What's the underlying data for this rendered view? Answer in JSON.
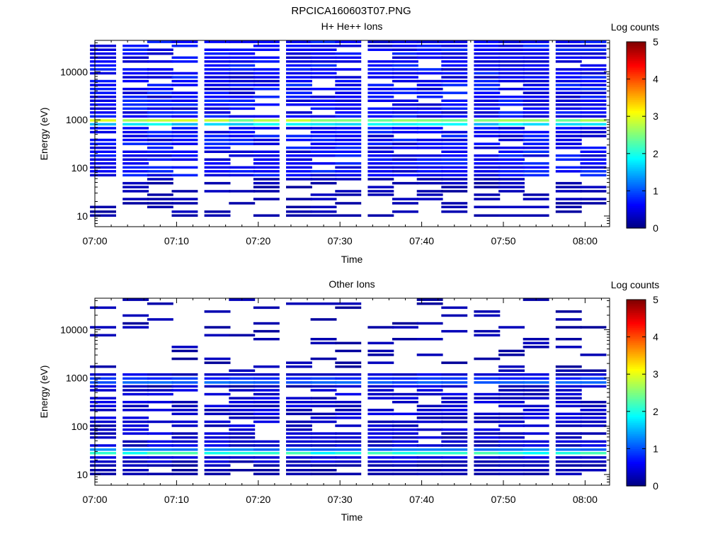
{
  "figure_title": "RPCICA160603T07.PNG",
  "colors": {
    "cmap": [
      "#00007f",
      "#0000ff",
      "#007fff",
      "#00ffff",
      "#7fff7f",
      "#ffff00",
      "#ff7f00",
      "#ff0000",
      "#7f0000"
    ]
  },
  "chart_data": [
    {
      "type": "heatmap",
      "title": "H+ He++ Ions",
      "xlabel": "Time",
      "ylabel": "Energy (eV)",
      "x_ticks": [
        "07:00",
        "07:10",
        "07:20",
        "07:30",
        "07:40",
        "07:50",
        "08:00"
      ],
      "y_ticks": [
        "10",
        "100",
        "1000",
        "10000"
      ],
      "y_scale": "log",
      "xlim": [
        "07:00",
        "08:03"
      ],
      "ylim": [
        6,
        45000
      ],
      "colorbar": {
        "label": "Log counts",
        "range": [
          0,
          5
        ],
        "ticks": [
          "0",
          "1",
          "2",
          "3",
          "4",
          "5"
        ]
      },
      "time_bins": [
        "07:01",
        "07:05",
        "07:08",
        "07:11",
        "07:15",
        "07:18",
        "07:21",
        "07:25",
        "07:28",
        "07:31",
        "07:35",
        "07:38",
        "07:41",
        "07:44",
        "07:48",
        "07:51",
        "07:54",
        "07:58",
        "08:01"
      ],
      "energy_bins_ev": [
        10,
        12,
        15,
        18,
        22,
        27,
        32,
        39,
        47,
        57,
        69,
        83,
        100,
        121,
        146,
        176,
        212,
        256,
        309,
        373,
        450,
        543,
        655,
        790,
        953,
        1150,
        1388,
        1675,
        2021,
        2438,
        2942,
        3550,
        4283,
        5168,
        6236,
        7525,
        9080,
        10957,
        13221,
        15953,
        19250,
        23228,
        28028,
        33820,
        40810
      ],
      "band": {
        "energy_ev": 900,
        "log_counts_peak": 3.0
      }
    },
    {
      "type": "heatmap",
      "title": "Other Ions",
      "xlabel": "Time",
      "ylabel": "Energy (eV)",
      "x_ticks": [
        "07:00",
        "07:10",
        "07:20",
        "07:30",
        "07:40",
        "07:50",
        "08:00"
      ],
      "y_ticks": [
        "10",
        "100",
        "1000",
        "10000"
      ],
      "y_scale": "log",
      "xlim": [
        "07:00",
        "08:03"
      ],
      "ylim": [
        6,
        45000
      ],
      "colorbar": {
        "label": "Log counts",
        "range": [
          0,
          5
        ],
        "ticks": [
          "0",
          "1",
          "2",
          "3",
          "4",
          "5"
        ]
      },
      "time_bins": [
        "07:01",
        "07:05",
        "07:08",
        "07:11",
        "07:15",
        "07:18",
        "07:21",
        "07:25",
        "07:28",
        "07:31",
        "07:35",
        "07:38",
        "07:41",
        "07:44",
        "07:48",
        "07:51",
        "07:54",
        "07:58",
        "08:01"
      ],
      "energy_bins_ev": [
        10,
        12,
        15,
        18,
        22,
        27,
        32,
        39,
        47,
        57,
        69,
        83,
        100,
        121,
        146,
        176,
        212,
        256,
        309,
        373,
        450,
        543,
        655,
        790,
        953,
        1150,
        1388,
        1675,
        2021,
        2438,
        2942,
        3550,
        4283,
        5168,
        6236,
        7525,
        9080,
        10957,
        13221,
        15953,
        19250,
        23228,
        28028,
        33820,
        40810
      ],
      "bands": [
        {
          "energy_ev": 850,
          "log_counts_peak": 1.3
        },
        {
          "energy_ev": 28,
          "log_counts_peak": 2.2
        }
      ]
    }
  ]
}
